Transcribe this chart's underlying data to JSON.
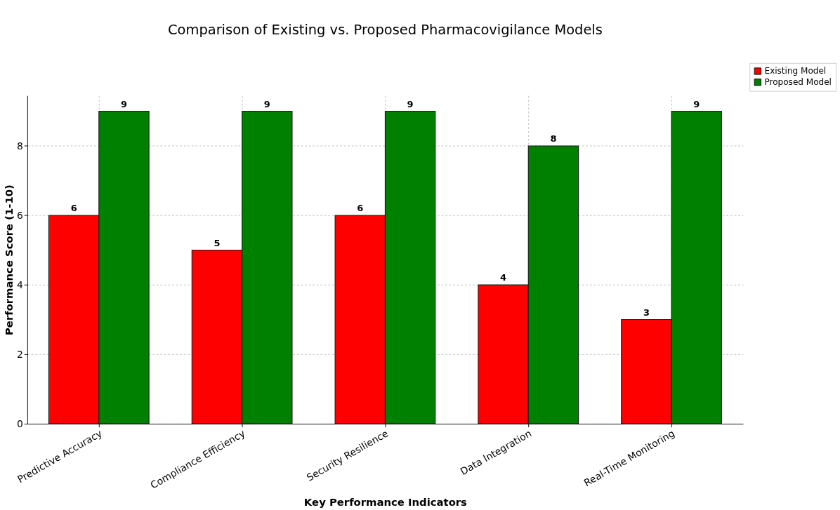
{
  "chart_data": {
    "type": "bar",
    "title": "Comparison of Existing vs. Proposed Pharmacovigilance Models",
    "xlabel": "Key Performance Indicators",
    "ylabel": "Performance Score (1-10)",
    "categories": [
      "Predictive Accuracy",
      "Compliance Efficiency",
      "Security Resilience",
      "Data Integration",
      "Real-Time Monitoring"
    ],
    "series": [
      {
        "name": "Existing Model",
        "color": "#ff0000",
        "values": [
          6,
          5,
          6,
          4,
          3
        ]
      },
      {
        "name": "Proposed Model",
        "color": "#008000",
        "values": [
          9,
          9,
          9,
          8,
          9
        ]
      }
    ],
    "ylim": [
      0,
      9.45
    ],
    "yticks": [
      0,
      2,
      4,
      6,
      8
    ],
    "grid": true,
    "legend": "top right",
    "data_labels": true
  }
}
